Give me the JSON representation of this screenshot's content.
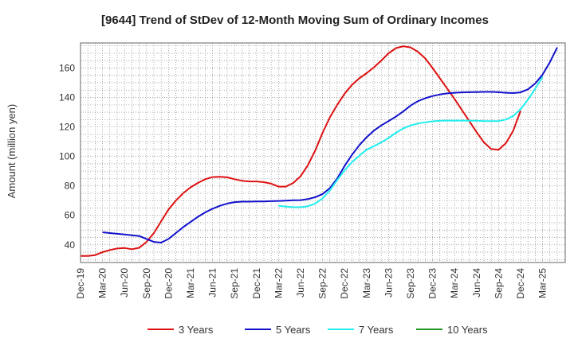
{
  "chart_data": {
    "type": "line",
    "title": "[9644]  Trend of StDev of 12-Month Moving Sum of Ordinary Incomes",
    "xlabel": "",
    "ylabel": "Amount (million yen)",
    "ylim": [
      28,
      177
    ],
    "y_ticks": [
      40,
      60,
      80,
      100,
      120,
      140,
      160
    ],
    "x_ticks": [
      "Dec-19",
      "Mar-20",
      "Jun-20",
      "Sep-20",
      "Dec-20",
      "Mar-21",
      "Jun-21",
      "Sep-21",
      "Dec-21",
      "Mar-22",
      "Jun-22",
      "Sep-22",
      "Dec-22",
      "Mar-23",
      "Jun-23",
      "Sep-23",
      "Dec-23",
      "Mar-24",
      "Jun-24",
      "Sep-24",
      "Dec-24",
      "Mar-25"
    ],
    "grid": true,
    "legend_position": "bottom",
    "series": [
      {
        "name": "3 Years",
        "color": "#dd1111",
        "start_month_index": 0,
        "values": [
          32.5,
          32.5,
          33,
          35,
          36.5,
          37.5,
          37.8,
          37,
          38,
          42,
          48,
          56,
          64,
          70,
          75,
          79,
          82,
          84.5,
          86,
          86.2,
          85.8,
          84.5,
          83.5,
          83,
          83,
          82.5,
          81.5,
          79.5,
          79.5,
          82,
          86.5,
          94,
          104,
          116,
          126.5,
          135,
          142.5,
          148.5,
          153,
          156.5,
          160.5,
          165,
          170,
          173.5,
          174.8,
          174,
          171,
          166.5,
          160,
          153,
          146,
          139,
          131.5,
          124,
          116.5,
          109.5,
          105,
          104.5,
          109,
          117.5,
          131
        ]
      },
      {
        "name": "5 Years",
        "color": "#1111cc",
        "start_month_index": 3,
        "values": [
          48.5,
          48,
          47.5,
          47,
          46.5,
          46,
          44,
          42,
          41.5,
          44,
          48,
          52,
          55.5,
          59,
          62,
          64.5,
          66.5,
          68,
          69,
          69.3,
          69.3,
          69.4,
          69.4,
          69.6,
          69.8,
          70,
          70.2,
          70.3,
          71,
          72.3,
          74.5,
          78.5,
          85,
          93.5,
          101,
          107.5,
          113,
          117.5,
          121,
          124,
          127,
          130.5,
          134.5,
          137.5,
          139.5,
          141,
          142,
          142.8,
          143.2,
          143.5,
          143.6,
          143.7,
          143.8,
          143.8,
          143.6,
          143.2,
          143,
          143.5,
          145.5,
          149.5,
          155.5,
          164,
          174
        ]
      },
      {
        "name": "7 Years",
        "color": "#22eeee",
        "start_month_index": 27,
        "values": [
          66.5,
          66,
          65.5,
          65.5,
          66.2,
          68,
          71.5,
          77,
          84,
          90.5,
          96,
          100.5,
          104.5,
          107,
          109.5,
          112.5,
          116,
          119,
          121,
          122.3,
          123.2,
          123.8,
          124.2,
          124.3,
          124.3,
          124.3,
          124.2,
          124.2,
          124,
          124,
          124,
          125,
          127.5,
          132,
          138.5,
          146,
          154
        ]
      },
      {
        "name": "10 Years",
        "color": "#229922",
        "start_month_index": 0,
        "values": []
      }
    ]
  }
}
